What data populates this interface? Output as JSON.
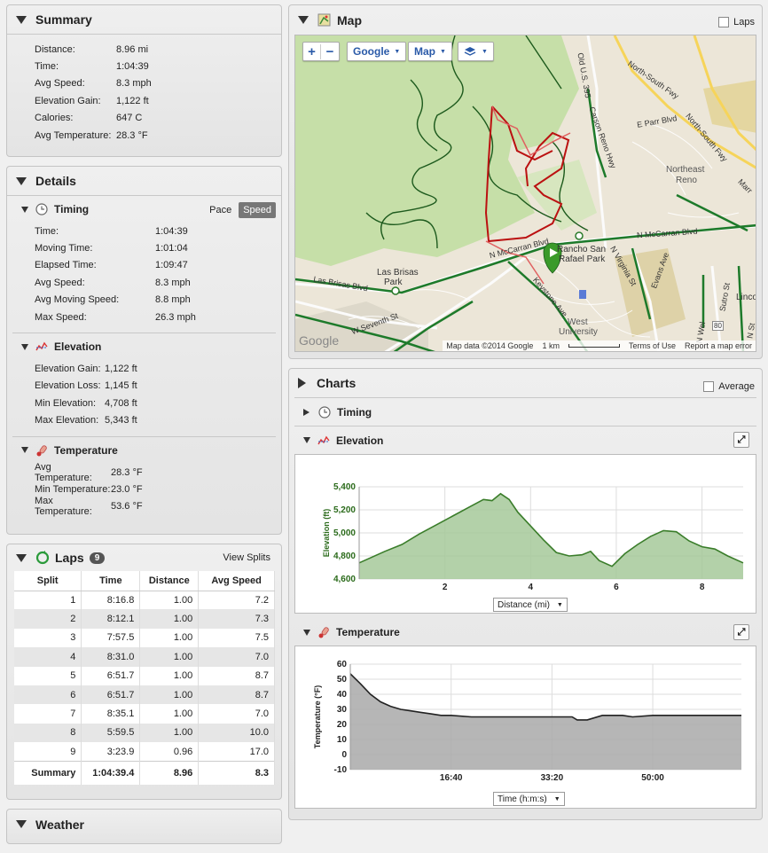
{
  "summary": {
    "title": "Summary",
    "rows": [
      {
        "k": "Distance:",
        "v": "8.96 mi"
      },
      {
        "k": "Time:",
        "v": "1:04:39"
      },
      {
        "k": "Avg Speed:",
        "v": "8.3 mph"
      },
      {
        "k": "Elevation Gain:",
        "v": "1,122 ft"
      },
      {
        "k": "Calories:",
        "v": "647 C"
      },
      {
        "k": "Avg Temperature:",
        "v": "28.3 °F"
      }
    ]
  },
  "details": {
    "title": "Details",
    "timing": {
      "title": "Timing",
      "pace_label": "Pace",
      "speed_label": "Speed",
      "rows": [
        {
          "k": "Time:",
          "v": "1:04:39"
        },
        {
          "k": "Moving Time:",
          "v": "1:01:04"
        },
        {
          "k": "Elapsed Time:",
          "v": "1:09:47"
        },
        {
          "k": "Avg Speed:",
          "v": "8.3 mph"
        },
        {
          "k": "Avg Moving Speed:",
          "v": "8.8 mph"
        },
        {
          "k": "Max Speed:",
          "v": "26.3 mph"
        }
      ]
    },
    "elevation": {
      "title": "Elevation",
      "rows": [
        {
          "k": "Elevation Gain:",
          "v": "1,122 ft"
        },
        {
          "k": "Elevation Loss:",
          "v": "1,145 ft"
        },
        {
          "k": "Min Elevation:",
          "v": "4,708 ft"
        },
        {
          "k": "Max Elevation:",
          "v": "5,343 ft"
        }
      ]
    },
    "temperature": {
      "title": "Temperature",
      "rows": [
        {
          "k": "Avg Temperature:",
          "v": "28.3 °F"
        },
        {
          "k": "Min Temperature:",
          "v": "23.0 °F"
        },
        {
          "k": "Max Temperature:",
          "v": "53.6 °F"
        }
      ]
    }
  },
  "laps": {
    "title": "Laps",
    "count": "9",
    "view_splits": "View Splits",
    "headers": [
      "Split",
      "Time",
      "Distance",
      "Avg Speed"
    ],
    "rows": [
      [
        "1",
        "8:16.8",
        "1.00",
        "7.2"
      ],
      [
        "2",
        "8:12.1",
        "1.00",
        "7.3"
      ],
      [
        "3",
        "7:57.5",
        "1.00",
        "7.5"
      ],
      [
        "4",
        "8:31.0",
        "1.00",
        "7.0"
      ],
      [
        "5",
        "6:51.7",
        "1.00",
        "8.7"
      ],
      [
        "6",
        "6:51.7",
        "1.00",
        "8.7"
      ],
      [
        "7",
        "8:35.1",
        "1.00",
        "7.0"
      ],
      [
        "8",
        "5:59.5",
        "1.00",
        "10.0"
      ],
      [
        "9",
        "3:23.9",
        "0.96",
        "17.0"
      ]
    ],
    "summary_row": [
      "Summary",
      "1:04:39.4",
      "8.96",
      "8.3"
    ]
  },
  "weather": {
    "title": "Weather"
  },
  "map": {
    "title": "Map",
    "laps_label": "Laps",
    "zoom_in": "+",
    "zoom_out": "−",
    "provider": "Google",
    "map_type": "Map",
    "footer": {
      "data": "Map data ©2014 Google",
      "scale": "1 km",
      "terms": "Terms of Use",
      "report": "Report a map error"
    },
    "labels": {
      "nsfwy1": "North-South Fwy",
      "nsfwy2": "North-South Fwy",
      "ne_reno1": "Northeast",
      "ne_reno2": "Reno",
      "mccarran1": "N McCarran Blvd",
      "mccarran2": "N McCarran Blvd",
      "las_brisas1": "Las Brisas",
      "las_brisas2": "Park",
      "las_brisas_blvd": "Las Brisas Blvd",
      "rancho1": "Rancho San",
      "rancho2": "Rafael Park",
      "west_univ1": "West",
      "west_univ2": "University",
      "seventh": "W Seventh St",
      "keystone": "Keystone Ave",
      "virginia": "N Virginia St",
      "evans": "Evans Ave",
      "oldus": "Old U.S. 395",
      "parr": "E Parr Blvd",
      "sutro": "Sutro St",
      "linco": "Linco",
      "google": "Google",
      "carson": "Carson Reno Hwy",
      "marr": "Marr",
      "fwy80": "80",
      "nwel": "N Wel",
      "nst": "N St"
    }
  },
  "charts": {
    "title": "Charts",
    "average_label": "Average",
    "timing_title": "Timing",
    "elevation_title": "Elevation",
    "temperature_title": "Temperature",
    "elev_dropdown": "Distance (mi)",
    "temp_dropdown": "Time (h:m:s)"
  },
  "chart_data": [
    {
      "type": "area",
      "ylabel": "Elevation (ft)",
      "xlabel": "Distance (mi)",
      "xlim": [
        0,
        8.96
      ],
      "ylim": [
        4600,
        5400
      ],
      "xticks": [
        2,
        4,
        6,
        8
      ],
      "yticks": [
        4600,
        4800,
        5000,
        5200,
        5400
      ],
      "ytick_labels": [
        "4,600",
        "4,800",
        "5,000",
        "5,200",
        "5,400"
      ],
      "color": "#3a7d2a",
      "fill": "#a6c99a",
      "x": [
        0,
        0.3,
        0.6,
        1.0,
        1.4,
        1.8,
        2.2,
        2.6,
        2.9,
        3.1,
        3.3,
        3.5,
        3.7,
        4.0,
        4.3,
        4.6,
        4.9,
        5.2,
        5.4,
        5.6,
        5.9,
        6.2,
        6.5,
        6.8,
        7.1,
        7.4,
        7.7,
        8.0,
        8.3,
        8.6,
        8.96
      ],
      "y": [
        4740,
        4790,
        4840,
        4900,
        4990,
        5070,
        5150,
        5230,
        5290,
        5280,
        5340,
        5290,
        5180,
        5060,
        4940,
        4830,
        4800,
        4810,
        4840,
        4760,
        4710,
        4820,
        4900,
        4970,
        5020,
        5010,
        4930,
        4880,
        4860,
        4800,
        4740
      ]
    },
    {
      "type": "area",
      "ylabel": "Temperature (°F)",
      "xlabel": "Time (h:m:s)",
      "xlim": [
        0,
        3879
      ],
      "ylim": [
        -10,
        60
      ],
      "xticks": [
        1000,
        2000,
        3000
      ],
      "xtick_labels": [
        "16:40",
        "33:20",
        "50:00"
      ],
      "yticks": [
        -10,
        0,
        10,
        20,
        30,
        40,
        50,
        60
      ],
      "color": "#222222",
      "fill": "#a9a9a9",
      "x": [
        0,
        100,
        200,
        300,
        400,
        500,
        600,
        700,
        800,
        900,
        1000,
        1200,
        1400,
        1600,
        1800,
        2000,
        2200,
        2250,
        2350,
        2500,
        2700,
        2800,
        3000,
        3200,
        3400,
        3600,
        3879
      ],
      "y": [
        53.6,
        47,
        40,
        35,
        32,
        30,
        29,
        28,
        27,
        26,
        26,
        25,
        25,
        25,
        25,
        25,
        25,
        23,
        23,
        26,
        26,
        25,
        26,
        26,
        26,
        26,
        26
      ]
    }
  ]
}
